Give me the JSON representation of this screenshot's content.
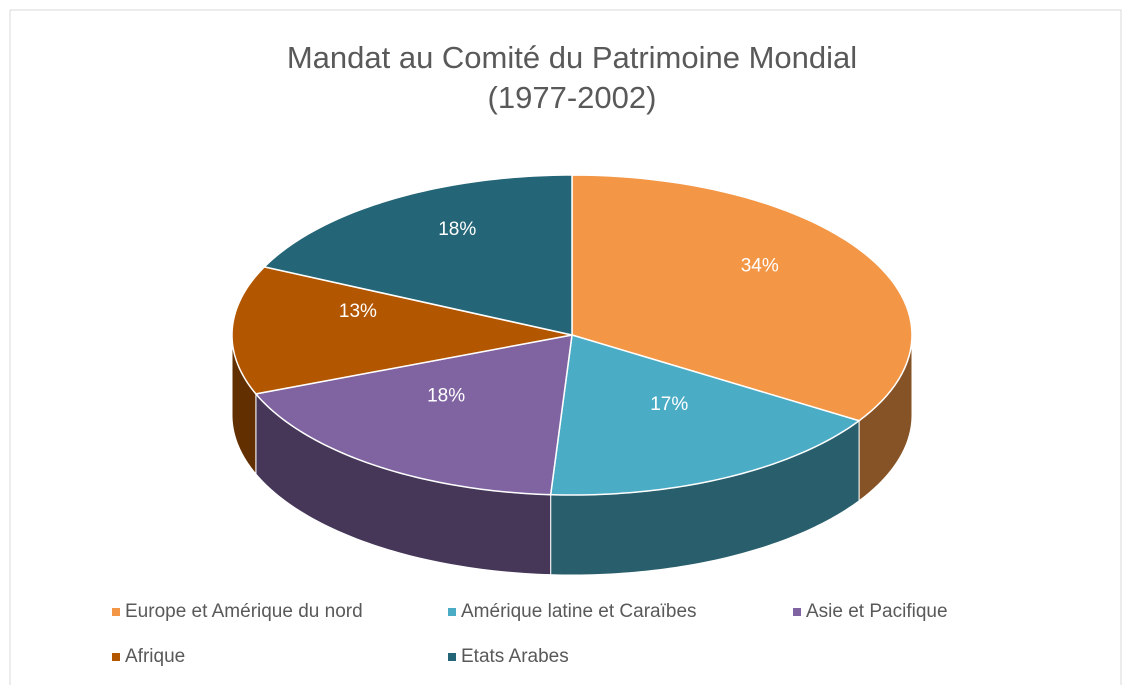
{
  "chart_data": {
    "type": "pie3d",
    "title": "Mandat au Comité du Patrimoine Mondial",
    "subtitle": "(1977-2002)",
    "categories": [
      "Europe et Amérique du nord",
      "Amérique latine et Caraïbes",
      "Asie et Pacifique",
      "Afrique",
      "Etats Arabes"
    ],
    "values": [
      34,
      17,
      18,
      13,
      18
    ],
    "value_labels": [
      "34%",
      "17%",
      "18%",
      "13%",
      "18%"
    ],
    "colors": [
      "#f39645",
      "#4bacc6",
      "#8064a2",
      "#b35600",
      "#246677"
    ],
    "legend": "bottom"
  }
}
